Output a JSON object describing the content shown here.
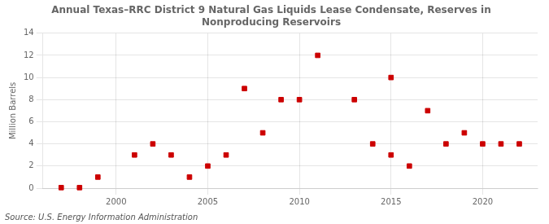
{
  "chart_data": {
    "type": "scatter",
    "title": "Annual Texas–RRC District 9 Natural Gas Liquids Lease Condensate, Reserves in\nNonproducing Reservoirs",
    "ylabel": "Million Barrels",
    "annotations": [
      "Source: U.S. Energy Information Administration"
    ],
    "x": [
      1997,
      1998,
      1999,
      2001,
      2002,
      2003,
      2004,
      2005,
      2006,
      2007,
      2008,
      2009,
      2010,
      2011,
      2013,
      2014,
      2015,
      2015,
      2016,
      2017,
      2018,
      2019,
      2020,
      2021,
      2022
    ],
    "values": [
      0.05,
      0.05,
      1,
      3,
      4,
      3,
      1,
      2,
      3,
      9,
      5,
      8,
      8,
      12,
      8,
      4,
      10,
      3,
      2,
      7,
      4,
      5,
      4,
      4,
      4
    ],
    "color": "#cc0000",
    "marker": "square",
    "xlim": [
      1996,
      2023
    ],
    "ylim": [
      0,
      14
    ],
    "xticks": [
      2000,
      2005,
      2010,
      2015,
      2020
    ],
    "yticks": [
      0,
      2,
      4,
      6,
      8,
      10,
      12,
      14
    ],
    "grid": true
  }
}
